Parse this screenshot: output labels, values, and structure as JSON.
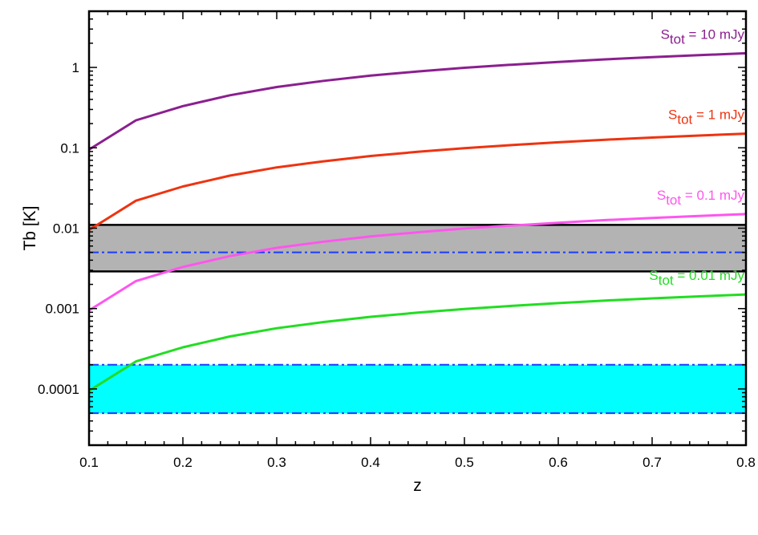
{
  "chart_data": {
    "type": "line",
    "xlabel": "z",
    "ylabel": "Tb [K]",
    "xlim": [
      0.1,
      0.8
    ],
    "ylim": [
      2e-05,
      5
    ],
    "yscale": "log",
    "grid": false,
    "x_ticks": [
      0.1,
      0.2,
      0.3,
      0.4,
      0.5,
      0.6,
      0.7,
      0.8
    ],
    "x_tick_labels": [
      "0.1",
      "0.2",
      "0.3",
      "0.4",
      "0.5",
      "0.6",
      "0.7",
      "0.8"
    ],
    "y_ticks": [
      0.0001,
      0.001,
      0.01,
      0.1,
      1
    ],
    "y_tick_labels": [
      "0.0001",
      "0.001",
      "0.01",
      "0.1",
      "1"
    ],
    "x": [
      0.1,
      0.15,
      0.2,
      0.25,
      0.3,
      0.35,
      0.4,
      0.45,
      0.5,
      0.55,
      0.6,
      0.65,
      0.7,
      0.75,
      0.8
    ],
    "series": [
      {
        "label_main": "S",
        "label_sub": "tot",
        "label_rest": " = 10 mJy",
        "color": "#8b1f8f",
        "values": [
          0.095,
          0.22,
          0.33,
          0.45,
          0.57,
          0.68,
          0.79,
          0.89,
          0.99,
          1.08,
          1.17,
          1.26,
          1.34,
          1.42,
          1.5
        ]
      },
      {
        "label_main": "S",
        "label_sub": "tot",
        "label_rest": " = 1 mJy",
        "color": "#ee3311",
        "values": [
          0.0095,
          0.022,
          0.033,
          0.045,
          0.057,
          0.068,
          0.079,
          0.089,
          0.099,
          0.108,
          0.117,
          0.126,
          0.134,
          0.142,
          0.15
        ]
      },
      {
        "label_main": "S",
        "label_sub": "tot",
        "label_rest": " = 0.1 mJy",
        "color": "#ff55ee",
        "values": [
          0.00095,
          0.0022,
          0.0033,
          0.0045,
          0.0057,
          0.0068,
          0.0079,
          0.0089,
          0.0099,
          0.0108,
          0.0117,
          0.0126,
          0.0134,
          0.0142,
          0.015
        ]
      },
      {
        "label_main": "S",
        "label_sub": "tot",
        "label_rest": " = 0.01 mJy",
        "color": "#22dd22",
        "values": [
          9.5e-05,
          0.00022,
          0.00033,
          0.00045,
          0.00057,
          0.00068,
          0.00079,
          0.00089,
          0.00099,
          0.00108,
          0.00117,
          0.00126,
          0.00134,
          0.00142,
          0.0015
        ]
      }
    ],
    "bands": [
      {
        "y_low": 0.0029,
        "y_high": 0.011,
        "fill": "#b3b3b3",
        "border": "#000000",
        "line_y": 0.005,
        "line_color": "#1a3cff"
      },
      {
        "y_low": 5e-05,
        "y_high": 0.0002,
        "fill": "#00ffff",
        "border": "#1a3cff",
        "line_y": null,
        "line_color": "#1a3cff"
      }
    ]
  }
}
